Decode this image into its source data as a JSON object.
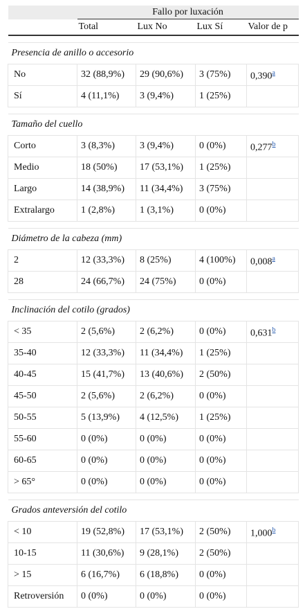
{
  "header": {
    "group": "Fallo por luxación",
    "columns": [
      "Total",
      "Lux No",
      "Lux Sí",
      "Valor de p"
    ]
  },
  "sections": [
    {
      "title": "Presencia de anillo o accesorio",
      "rows": [
        {
          "label": "No",
          "cells": [
            "32 (88,9%)",
            "29 (90,6%)",
            "3 (75%)"
          ],
          "p": "0,390",
          "p_note": "a"
        },
        {
          "label": "Sí",
          "cells": [
            "4 (11,1%)",
            "3 (9,4%)",
            "1 (25%)"
          ]
        }
      ]
    },
    {
      "title": "Tamaño del cuello",
      "rows": [
        {
          "label": "Corto",
          "cells": [
            "3 (8,3%)",
            "3 (9,4%)",
            "0 (0%)"
          ],
          "p": "0,277",
          "p_note": "b"
        },
        {
          "label": "Medio",
          "cells": [
            "18 (50%)",
            "17 (53,1%)",
            "1 (25%)"
          ]
        },
        {
          "label": "Largo",
          "cells": [
            "14 (38,9%)",
            "11 (34,4%)",
            "3 (75%)"
          ]
        },
        {
          "label": "Extralargo",
          "cells": [
            "1 (2,8%)",
            "1 (3,1%)",
            "0 (0%)"
          ]
        }
      ]
    },
    {
      "title": "Diámetro de la cabeza (mm)",
      "rows": [
        {
          "label": "2",
          "cells": [
            "12 (33,3%)",
            "8 (25%)",
            "4 (100%)"
          ],
          "p": "0,008",
          "p_note": "a"
        },
        {
          "label": "28",
          "cells": [
            "24 (66,7%)",
            "24 (75%)",
            "0 (0%)"
          ]
        }
      ]
    },
    {
      "title": "Inclinación del cotilo (grados)",
      "rows": [
        {
          "label": "< 35",
          "cells": [
            "2 (5,6%)",
            "2 (6,2%)",
            "0 (0%)"
          ],
          "p": "0,631",
          "p_note": "b"
        },
        {
          "label": "35-40",
          "cells": [
            "12 (33,3%)",
            "11 (34,4%)",
            "1 (25%)"
          ]
        },
        {
          "label": "40-45",
          "cells": [
            "15 (41,7%)",
            "13 (40,6%)",
            "2 (50%)"
          ]
        },
        {
          "label": "45-50",
          "cells": [
            "2 (5,6%)",
            "2 (6,2%)",
            "0 (0%)"
          ]
        },
        {
          "label": "50-55",
          "cells": [
            "5 (13,9%)",
            "4 (12,5%)",
            "1 (25%)"
          ]
        },
        {
          "label": "55-60",
          "cells": [
            "0 (0%)",
            "0 (0%)",
            "0 (0%)"
          ]
        },
        {
          "label": "60-65",
          "cells": [
            "0 (0%)",
            "0 (0%)",
            "0 (0%)"
          ]
        },
        {
          "label": "> 65°",
          "cells": [
            "0 (0%)",
            "0 (0%)",
            "0 (0%)"
          ]
        }
      ]
    },
    {
      "title": "Grados anteversión del cotilo",
      "rows": [
        {
          "label": "< 10",
          "cells": [
            "19 (52,8%)",
            "17 (53,1%)",
            "2 (50%)"
          ],
          "p": "1,000",
          "p_note": "b"
        },
        {
          "label": "10-15",
          "cells": [
            "11 (30,6%)",
            "9 (28,1%)",
            "2 (50%)"
          ]
        },
        {
          "label": "> 15",
          "cells": [
            "6 (16,7%)",
            "6 (18,8%)",
            "0 (0%)"
          ]
        },
        {
          "label": "Retroversión",
          "cells": [
            "0 (0%)",
            "0 (0%)",
            "0 (0%)"
          ]
        }
      ]
    }
  ]
}
